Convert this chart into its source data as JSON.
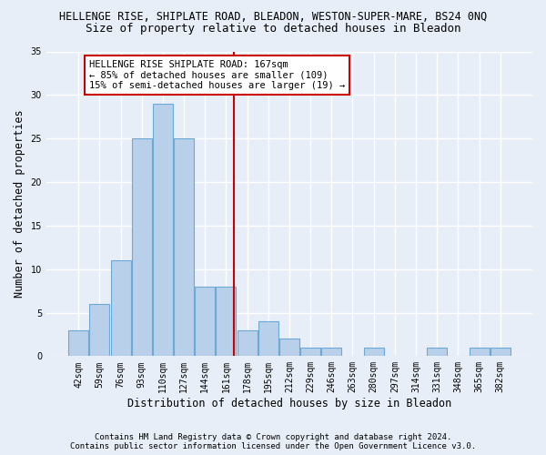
{
  "title": "HELLENGE RISE, SHIPLATE ROAD, BLEADON, WESTON-SUPER-MARE, BS24 0NQ",
  "subtitle": "Size of property relative to detached houses in Bleadon",
  "xlabel": "Distribution of detached houses by size in Bleadon",
  "ylabel": "Number of detached properties",
  "categories": [
    "42sqm",
    "59sqm",
    "76sqm",
    "93sqm",
    "110sqm",
    "127sqm",
    "144sqm",
    "161sqm",
    "178sqm",
    "195sqm",
    "212sqm",
    "229sqm",
    "246sqm",
    "263sqm",
    "280sqm",
    "297sqm",
    "314sqm",
    "331sqm",
    "348sqm",
    "365sqm",
    "382sqm"
  ],
  "values": [
    3,
    6,
    11,
    25,
    29,
    25,
    8,
    8,
    3,
    4,
    2,
    1,
    1,
    0,
    1,
    0,
    0,
    1,
    0,
    1,
    1
  ],
  "bar_color": "#b8d0ea",
  "bar_edgecolor": "#6aaad4",
  "bg_color": "#e8eef8",
  "grid_color": "#ffffff",
  "vline_color": "#cc0000",
  "annotation_text": "HELLENGE RISE SHIPLATE ROAD: 167sqm\n← 85% of detached houses are smaller (109)\n15% of semi-detached houses are larger (19) →",
  "annotation_box_facecolor": "#ffffff",
  "annotation_box_edgecolor": "#cc0000",
  "footer_line1": "Contains HM Land Registry data © Crown copyright and database right 2024.",
  "footer_line2": "Contains public sector information licensed under the Open Government Licence v3.0.",
  "ylim": [
    0,
    35
  ],
  "yticks": [
    0,
    5,
    10,
    15,
    20,
    25,
    30,
    35
  ],
  "figsize": [
    6.0,
    5.0
  ],
  "dpi": 100,
  "title_fontsize": 8.5,
  "subtitle_fontsize": 9,
  "tick_fontsize": 7,
  "ylabel_fontsize": 8.5,
  "xlabel_fontsize": 8.5,
  "annotation_fontsize": 7.5,
  "footer_fontsize": 6.5
}
